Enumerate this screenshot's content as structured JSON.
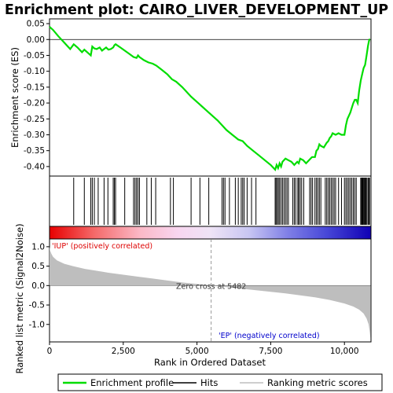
{
  "title": "Enrichment plot: CAIRO_LIVER_DEVELOPMENT_UP",
  "colors": {
    "es_line": "#00dd00",
    "hits": "#000000",
    "metric_fill": "#bebebe",
    "positive_label": "#dd0000",
    "negative_label": "#0000cc",
    "zero_line": "#7f7f7f"
  },
  "chart_data": [
    {
      "type": "line",
      "panel": "enrichment-profile",
      "title": "Enrichment plot: CAIRO_LIVER_DEVELOPMENT_UP",
      "ylabel": "Enrichment score (ES)",
      "xlim": [
        0,
        10900
      ],
      "ylim": [
        -0.43,
        0.065
      ],
      "yticks": [
        0.05,
        0.0,
        -0.05,
        -0.1,
        -0.15,
        -0.2,
        -0.25,
        -0.3,
        -0.35,
        -0.4
      ],
      "ytick_labels": [
        "0.05",
        "0.00",
        "-0.05",
        "-0.10",
        "-0.15",
        "-0.20",
        "-0.25",
        "-0.30",
        "-0.35",
        "-0.40"
      ],
      "series": [
        {
          "name": "Enrichment profile",
          "x": [
            0,
            120,
            300,
            500,
            700,
            820,
            950,
            1100,
            1180,
            1300,
            1400,
            1450,
            1520,
            1600,
            1700,
            1780,
            1850,
            1920,
            2000,
            2080,
            2160,
            2200,
            2240,
            2400,
            2550,
            2700,
            2850,
            2950,
            3000,
            3050,
            3200,
            3350,
            3500,
            3620,
            3800,
            4000,
            4150,
            4300,
            4500,
            4800,
            5100,
            5400,
            5700,
            5900,
            6000,
            6200,
            6400,
            6550,
            6700,
            6900,
            7100,
            7300,
            7500,
            7650,
            7700,
            7750,
            7800,
            7850,
            7900,
            7950,
            8000,
            8100,
            8200,
            8300,
            8400,
            8450,
            8500,
            8600,
            8700,
            8800,
            8850,
            8900,
            9000,
            9050,
            9100,
            9150,
            9200,
            9300,
            9400,
            9450,
            9500,
            9550,
            9600,
            9700,
            9800,
            9900,
            10000,
            10050,
            10100,
            10150,
            10200,
            10250,
            10300,
            10350,
            10400,
            10450,
            10500,
            10550,
            10600,
            10650,
            10700,
            10750,
            10800,
            10830,
            10850,
            10870
          ],
          "y": [
            0.04,
            0.03,
            0.01,
            -0.01,
            -0.03,
            -0.015,
            -0.025,
            -0.04,
            -0.032,
            -0.042,
            -0.05,
            -0.022,
            -0.028,
            -0.03,
            -0.025,
            -0.035,
            -0.03,
            -0.025,
            -0.032,
            -0.03,
            -0.025,
            -0.018,
            -0.015,
            -0.025,
            -0.035,
            -0.045,
            -0.055,
            -0.058,
            -0.05,
            -0.055,
            -0.065,
            -0.072,
            -0.076,
            -0.082,
            -0.095,
            -0.11,
            -0.125,
            -0.133,
            -0.15,
            -0.18,
            -0.205,
            -0.23,
            -0.255,
            -0.275,
            -0.285,
            -0.3,
            -0.315,
            -0.32,
            -0.335,
            -0.35,
            -0.365,
            -0.38,
            -0.395,
            -0.41,
            -0.395,
            -0.405,
            -0.39,
            -0.4,
            -0.385,
            -0.38,
            -0.375,
            -0.38,
            -0.385,
            -0.395,
            -0.385,
            -0.39,
            -0.375,
            -0.38,
            -0.39,
            -0.38,
            -0.375,
            -0.37,
            -0.37,
            -0.35,
            -0.345,
            -0.33,
            -0.335,
            -0.34,
            -0.325,
            -0.32,
            -0.31,
            -0.305,
            -0.295,
            -0.3,
            -0.295,
            -0.3,
            -0.3,
            -0.27,
            -0.25,
            -0.24,
            -0.23,
            -0.215,
            -0.2,
            -0.19,
            -0.19,
            -0.2,
            -0.16,
            -0.13,
            -0.11,
            -0.09,
            -0.08,
            -0.05,
            -0.02,
            -0.005,
            0.0,
            0.0
          ]
        }
      ]
    },
    {
      "type": "scatter",
      "panel": "hits",
      "series": [
        {
          "name": "Hits",
          "x": [
            820,
            1180,
            1400,
            1450,
            1520,
            1650,
            1850,
            1980,
            2160,
            2200,
            2240,
            2550,
            2850,
            2900,
            2950,
            3000,
            3050,
            3300,
            3450,
            3600,
            4100,
            4200,
            4800,
            5100,
            5400,
            5850,
            5900,
            5950,
            6100,
            6300,
            6400,
            6500,
            6550,
            6600,
            6700,
            6850,
            7000,
            7650,
            7680,
            7720,
            7760,
            7800,
            7850,
            7900,
            7950,
            8000,
            8050,
            8100,
            8250,
            8300,
            8350,
            8420,
            8450,
            8500,
            8550,
            8620,
            8820,
            8870,
            8920,
            9000,
            9050,
            9100,
            9150,
            9200,
            9350,
            9400,
            9450,
            9500,
            9550,
            9600,
            9650,
            9700,
            9800,
            9900,
            10000,
            10050,
            10100,
            10150,
            10200,
            10250,
            10300,
            10350,
            10400,
            10550,
            10580,
            10600,
            10620,
            10650,
            10670,
            10700,
            10730,
            10760,
            10800,
            10830,
            10850
          ]
        }
      ]
    },
    {
      "type": "area",
      "panel": "ranked-list-metric",
      "ylabel": "Ranked list metric (Signal2Noise)",
      "xlabel": "Rank in Ordered Dataset",
      "xlim": [
        0,
        10900
      ],
      "ylim": [
        -1.45,
        1.2
      ],
      "xticks": [
        0,
        2500,
        5000,
        7500,
        10000
      ],
      "xtick_labels": [
        "0",
        "2,500",
        "5,000",
        "7,500",
        "10,000"
      ],
      "yticks": [
        1.0,
        0.5,
        0.0,
        -0.5,
        -1.0
      ],
      "ytick_labels": [
        "1.0",
        "0.5",
        "0.0",
        "-0.5",
        "-1.0"
      ],
      "zero_cross_rank": 5482,
      "series": [
        {
          "name": "Ranking metric scores",
          "x": [
            0,
            20,
            60,
            120,
            250,
            500,
            800,
            1200,
            1600,
            2000,
            2500,
            3000,
            3500,
            4000,
            4500,
            5000,
            5482,
            6000,
            6500,
            7000,
            7500,
            8000,
            8500,
            9000,
            9500,
            10000,
            10300,
            10500,
            10650,
            10750,
            10820,
            10860,
            10880
          ],
          "y": [
            1.0,
            0.9,
            0.82,
            0.74,
            0.65,
            0.56,
            0.5,
            0.43,
            0.38,
            0.33,
            0.28,
            0.23,
            0.18,
            0.13,
            0.08,
            0.04,
            0.0,
            -0.04,
            -0.08,
            -0.12,
            -0.16,
            -0.2,
            -0.25,
            -0.3,
            -0.37,
            -0.46,
            -0.54,
            -0.62,
            -0.72,
            -0.85,
            -1.0,
            -1.2,
            -1.35
          ]
        }
      ]
    }
  ],
  "annotations": {
    "zero_cross": "Zero cross at 5482",
    "positive": "'IUP' (positively correlated)",
    "negative": "'EP' (negatively correlated)"
  },
  "legend": {
    "placement": "bottom",
    "items": [
      {
        "label": "Enrichment profile",
        "kind": "line",
        "color": "#00dd00"
      },
      {
        "label": "Hits",
        "kind": "line",
        "color": "#000000"
      },
      {
        "label": "Ranking metric scores",
        "kind": "line",
        "color": "#bebebe"
      }
    ]
  }
}
